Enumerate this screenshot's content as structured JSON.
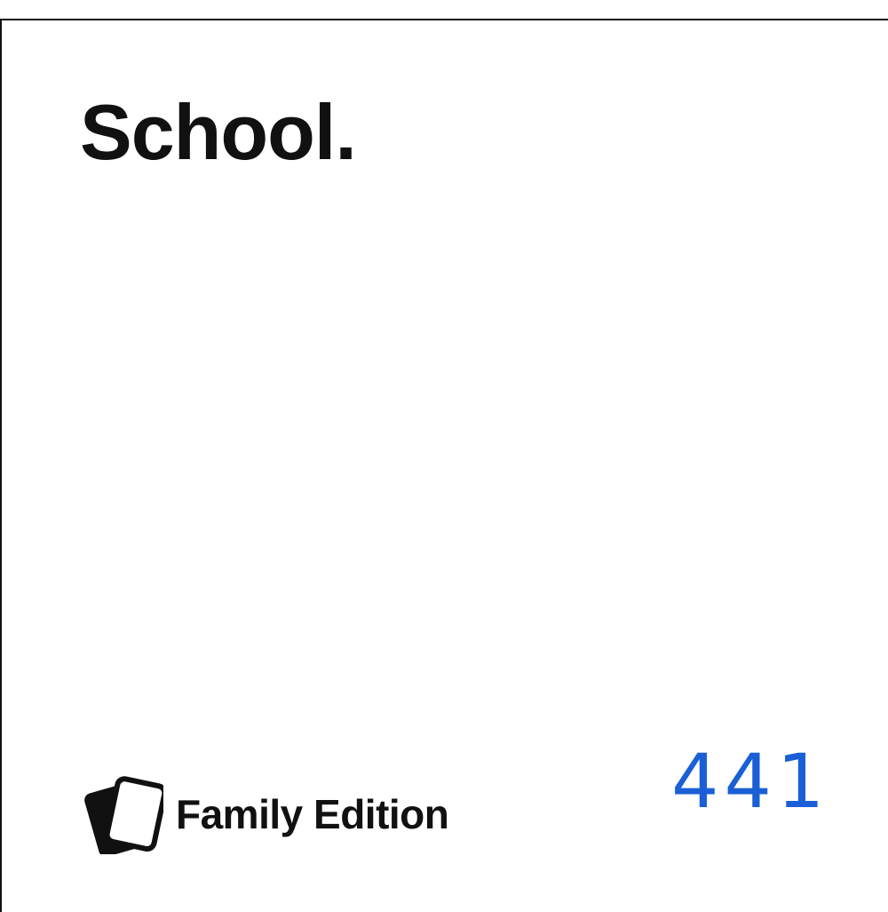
{
  "card": {
    "title": "School.",
    "brand": {
      "icon": "cards-icon",
      "label": "Family Edition"
    },
    "number": "441"
  },
  "colors": {
    "text": "#111111",
    "number": "#1a5fd6",
    "background": "#ffffff"
  }
}
